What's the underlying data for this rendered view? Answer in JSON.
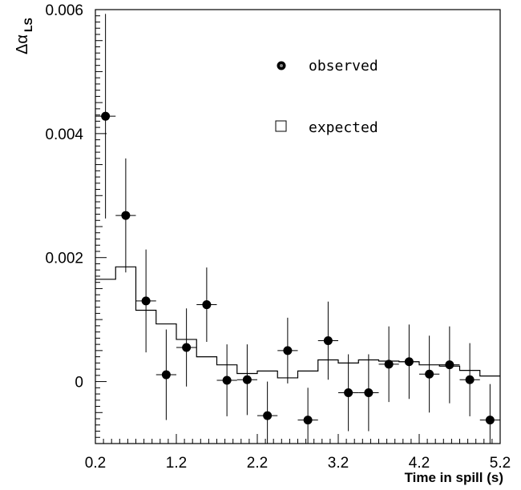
{
  "chart_data": {
    "type": "scatter",
    "xlabel": "Time in spill (s)",
    "ylabel": {
      "main": "Δα",
      "sub": "LS"
    },
    "xlim": [
      0.2,
      5.2
    ],
    "ylim": [
      -0.001,
      0.006
    ],
    "x_ticks": [
      "0.2",
      "1.2",
      "2.2",
      "3.2",
      "4.2",
      "5.2"
    ],
    "y_ticks": [
      "0",
      "0.002",
      "0.004",
      "0.006"
    ],
    "legend": {
      "placement": "top-right",
      "observed": "observed",
      "expected": "expected"
    },
    "series": [
      {
        "name": "observed",
        "style": "points-with-error-bars",
        "bin_width": 0.25,
        "x": [
          0.325,
          0.575,
          0.825,
          1.075,
          1.325,
          1.575,
          1.825,
          2.075,
          2.325,
          2.575,
          2.825,
          3.075,
          3.325,
          3.575,
          3.825,
          4.075,
          4.325,
          4.575,
          4.825,
          5.075
        ],
        "y": [
          0.00428,
          0.00268,
          0.0013,
          0.00011,
          0.00055,
          0.00124,
          2e-05,
          3e-05,
          -0.00055,
          0.0005,
          -0.00062,
          0.00066,
          -0.00018,
          -0.00018,
          0.00028,
          0.00032,
          0.00012,
          0.00027,
          3e-05,
          -0.00062
        ],
        "yerr": [
          0.00165,
          0.00092,
          0.00083,
          0.00073,
          0.00063,
          0.0006,
          0.00058,
          0.00057,
          0.00055,
          0.00053,
          0.00052,
          0.00063,
          0.00062,
          0.00062,
          0.00061,
          0.0006,
          0.00062,
          0.00062,
          0.00059,
          0.00058
        ]
      },
      {
        "name": "expected",
        "style": "step-histogram",
        "bin_edges": [
          0.2,
          0.45,
          0.7,
          0.95,
          1.2,
          1.45,
          1.7,
          1.95,
          2.2,
          2.45,
          2.7,
          2.95,
          3.2,
          3.45,
          3.7,
          3.95,
          4.2,
          4.45,
          4.7,
          4.95,
          5.2
        ],
        "values": [
          0.00165,
          0.00185,
          0.00115,
          0.00093,
          0.00068,
          0.0004,
          0.00027,
          0.00013,
          0.00017,
          6e-05,
          0.00017,
          0.00035,
          0.0003,
          0.00035,
          0.00033,
          0.00032,
          0.00027,
          0.00025,
          0.00018,
          9e-05
        ]
      }
    ]
  }
}
